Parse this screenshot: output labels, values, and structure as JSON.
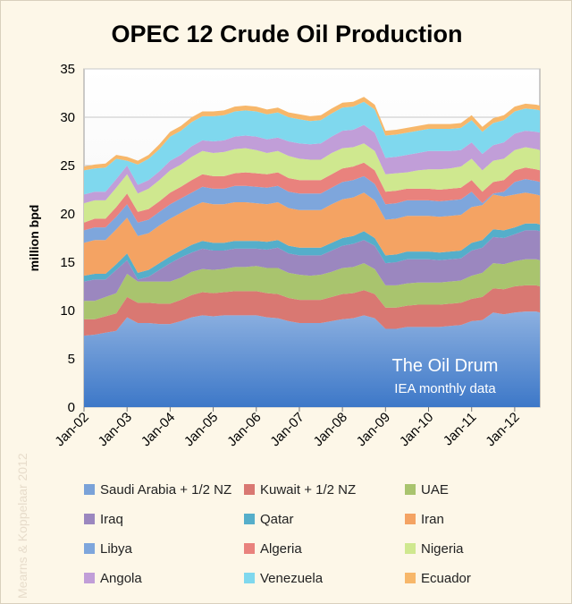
{
  "chart_data": {
    "type": "area",
    "stacked": true,
    "title": "OPEC 12 Crude Oil Production",
    "ylabel": "million bpd",
    "xlabel": "",
    "ylim": [
      0,
      35
    ],
    "yticks": [
      0,
      5,
      10,
      15,
      20,
      25,
      30,
      35
    ],
    "xlim": [
      "2002-01",
      "2012-08"
    ],
    "x_tick_labels": [
      "Jan-02",
      "Jan-03",
      "Jan-04",
      "Jan-05",
      "Jan-06",
      "Jan-07",
      "Jan-08",
      "Jan-09",
      "Jan-10",
      "Jan-11",
      "Jan-12"
    ],
    "grid": true,
    "legend_position": "bottom",
    "annotation": "The Oil Drum",
    "annotation_sub": "IEA monthly data",
    "watermark": "Mearns & Koppelaar 2012",
    "x": [
      "2002-01",
      "2002-04",
      "2002-07",
      "2002-10",
      "2003-01",
      "2003-04",
      "2003-07",
      "2003-10",
      "2004-01",
      "2004-04",
      "2004-07",
      "2004-10",
      "2005-01",
      "2005-04",
      "2005-07",
      "2005-10",
      "2006-01",
      "2006-04",
      "2006-07",
      "2006-10",
      "2007-01",
      "2007-04",
      "2007-07",
      "2007-10",
      "2008-01",
      "2008-04",
      "2008-07",
      "2008-10",
      "2009-01",
      "2009-04",
      "2009-07",
      "2009-10",
      "2010-01",
      "2010-04",
      "2010-07",
      "2010-10",
      "2011-01",
      "2011-04",
      "2011-07",
      "2011-10",
      "2012-01",
      "2012-04",
      "2012-07",
      "2012-08"
    ],
    "series": [
      {
        "name": "Saudi Arabia + 1/2 NZ",
        "color": "#7aa2d8",
        "values": [
          7.4,
          7.5,
          7.7,
          7.9,
          9.3,
          8.7,
          8.7,
          8.6,
          8.6,
          8.9,
          9.3,
          9.5,
          9.4,
          9.5,
          9.5,
          9.5,
          9.5,
          9.3,
          9.2,
          8.9,
          8.7,
          8.7,
          8.7,
          8.9,
          9.1,
          9.2,
          9.5,
          9.2,
          8.1,
          8.1,
          8.3,
          8.3,
          8.3,
          8.3,
          8.4,
          8.5,
          8.9,
          9.0,
          9.8,
          9.6,
          9.8,
          9.9,
          9.9,
          9.8
        ]
      },
      {
        "name": "Kuwait + 1/2 NZ",
        "color": "#d97872",
        "values": [
          1.7,
          1.6,
          1.7,
          1.8,
          2.1,
          2.1,
          2.1,
          2.1,
          2.1,
          2.2,
          2.3,
          2.4,
          2.4,
          2.4,
          2.5,
          2.5,
          2.5,
          2.5,
          2.5,
          2.4,
          2.4,
          2.4,
          2.4,
          2.5,
          2.6,
          2.6,
          2.6,
          2.5,
          2.2,
          2.2,
          2.2,
          2.3,
          2.3,
          2.3,
          2.3,
          2.3,
          2.3,
          2.4,
          2.5,
          2.6,
          2.7,
          2.7,
          2.7,
          2.7
        ]
      },
      {
        "name": "UAE",
        "color": "#a9c46e",
        "values": [
          1.9,
          1.9,
          2.0,
          2.1,
          2.4,
          2.2,
          2.2,
          2.3,
          2.3,
          2.3,
          2.4,
          2.4,
          2.4,
          2.4,
          2.5,
          2.5,
          2.6,
          2.6,
          2.7,
          2.6,
          2.6,
          2.5,
          2.6,
          2.6,
          2.7,
          2.7,
          2.8,
          2.6,
          2.3,
          2.3,
          2.3,
          2.3,
          2.3,
          2.3,
          2.3,
          2.3,
          2.4,
          2.5,
          2.6,
          2.6,
          2.6,
          2.7,
          2.7,
          2.7
        ]
      },
      {
        "name": "Iraq",
        "color": "#9b87bf",
        "values": [
          2.0,
          2.2,
          1.8,
          2.4,
          1.4,
          0.2,
          0.5,
          1.2,
          1.9,
          2.1,
          2.0,
          2.1,
          2.0,
          1.9,
          1.9,
          1.9,
          1.8,
          1.9,
          2.1,
          2.0,
          2.0,
          2.1,
          2.0,
          2.2,
          2.3,
          2.4,
          2.4,
          2.4,
          2.3,
          2.4,
          2.5,
          2.4,
          2.4,
          2.3,
          2.3,
          2.3,
          2.6,
          2.6,
          2.7,
          2.7,
          2.8,
          3.0,
          3.0,
          3.0
        ]
      },
      {
        "name": "Qatar",
        "color": "#55aeca",
        "values": [
          0.6,
          0.6,
          0.6,
          0.6,
          0.7,
          0.7,
          0.7,
          0.7,
          0.7,
          0.7,
          0.8,
          0.8,
          0.8,
          0.8,
          0.8,
          0.8,
          0.8,
          0.8,
          0.8,
          0.8,
          0.8,
          0.8,
          0.8,
          0.8,
          0.8,
          0.8,
          0.9,
          0.8,
          0.8,
          0.8,
          0.8,
          0.8,
          0.8,
          0.8,
          0.8,
          0.8,
          0.8,
          0.8,
          0.8,
          0.8,
          0.7,
          0.7,
          0.7,
          0.7
        ]
      },
      {
        "name": "Iran",
        "color": "#f4a363",
        "values": [
          3.4,
          3.5,
          3.5,
          3.6,
          3.7,
          3.8,
          3.8,
          3.9,
          3.9,
          3.9,
          3.9,
          4.0,
          4.0,
          4.0,
          4.0,
          4.0,
          3.9,
          3.9,
          3.9,
          3.9,
          3.9,
          3.9,
          3.9,
          4.0,
          4.0,
          4.0,
          4.0,
          3.9,
          3.7,
          3.7,
          3.7,
          3.7,
          3.7,
          3.7,
          3.7,
          3.7,
          3.7,
          3.6,
          3.6,
          3.5,
          3.4,
          3.2,
          3.0,
          3.0
        ]
      },
      {
        "name": "Libya",
        "color": "#7ea6dc",
        "values": [
          1.3,
          1.3,
          1.3,
          1.3,
          1.4,
          1.4,
          1.4,
          1.4,
          1.5,
          1.5,
          1.5,
          1.6,
          1.6,
          1.6,
          1.7,
          1.7,
          1.7,
          1.7,
          1.7,
          1.7,
          1.7,
          1.7,
          1.7,
          1.7,
          1.8,
          1.8,
          1.7,
          1.7,
          1.6,
          1.6,
          1.6,
          1.6,
          1.6,
          1.6,
          1.6,
          1.6,
          1.6,
          0.2,
          0.1,
          0.5,
          1.3,
          1.4,
          1.4,
          1.4
        ]
      },
      {
        "name": "Algeria",
        "color": "#e9827d",
        "values": [
          0.8,
          0.9,
          0.9,
          1.0,
          1.1,
          1.1,
          1.1,
          1.1,
          1.2,
          1.2,
          1.3,
          1.3,
          1.3,
          1.3,
          1.3,
          1.4,
          1.4,
          1.4,
          1.4,
          1.4,
          1.4,
          1.4,
          1.4,
          1.4,
          1.4,
          1.4,
          1.4,
          1.4,
          1.3,
          1.3,
          1.2,
          1.2,
          1.2,
          1.2,
          1.2,
          1.2,
          1.2,
          1.2,
          1.2,
          1.2,
          1.2,
          1.2,
          1.2,
          1.2
        ]
      },
      {
        "name": "Nigeria",
        "color": "#cfe88f",
        "values": [
          2.0,
          1.9,
          1.9,
          2.0,
          2.0,
          1.9,
          2.1,
          2.2,
          2.3,
          2.3,
          2.4,
          2.4,
          2.4,
          2.5,
          2.5,
          2.5,
          2.4,
          2.2,
          2.2,
          2.3,
          2.2,
          2.1,
          2.1,
          2.2,
          2.1,
          2.0,
          2.0,
          2.0,
          1.8,
          1.8,
          1.7,
          1.9,
          2.0,
          2.1,
          2.1,
          2.2,
          2.2,
          2.2,
          2.2,
          2.2,
          2.1,
          2.1,
          2.1,
          2.1
        ]
      },
      {
        "name": "Angola",
        "color": "#c19ed8",
        "values": [
          0.9,
          0.9,
          0.9,
          0.9,
          0.9,
          0.9,
          0.9,
          0.9,
          1.0,
          1.0,
          1.1,
          1.1,
          1.2,
          1.2,
          1.3,
          1.3,
          1.4,
          1.4,
          1.4,
          1.5,
          1.6,
          1.6,
          1.7,
          1.7,
          1.8,
          1.8,
          1.9,
          1.9,
          1.7,
          1.7,
          1.8,
          1.8,
          1.9,
          1.9,
          1.8,
          1.7,
          1.7,
          1.7,
          1.6,
          1.7,
          1.7,
          1.7,
          1.8,
          1.8
        ]
      },
      {
        "name": "Venezuela",
        "color": "#7fd8ee",
        "values": [
          2.5,
          2.4,
          2.5,
          2.1,
          0.5,
          2.1,
          2.2,
          2.3,
          2.5,
          2.5,
          2.5,
          2.5,
          2.6,
          2.6,
          2.6,
          2.6,
          2.6,
          2.6,
          2.6,
          2.5,
          2.5,
          2.4,
          2.4,
          2.4,
          2.4,
          2.4,
          2.4,
          2.4,
          2.3,
          2.3,
          2.3,
          2.3,
          2.3,
          2.3,
          2.3,
          2.3,
          2.3,
          2.3,
          2.3,
          2.3,
          2.3,
          2.3,
          2.3,
          2.3
        ]
      },
      {
        "name": "Ecuador",
        "color": "#f7b76a",
        "values": [
          0.4,
          0.4,
          0.4,
          0.4,
          0.4,
          0.4,
          0.4,
          0.5,
          0.5,
          0.5,
          0.5,
          0.5,
          0.5,
          0.5,
          0.5,
          0.5,
          0.5,
          0.5,
          0.5,
          0.5,
          0.5,
          0.5,
          0.5,
          0.5,
          0.5,
          0.5,
          0.5,
          0.5,
          0.5,
          0.5,
          0.5,
          0.5,
          0.5,
          0.5,
          0.5,
          0.5,
          0.5,
          0.5,
          0.5,
          0.5,
          0.5,
          0.5,
          0.5,
          0.5
        ]
      }
    ]
  }
}
